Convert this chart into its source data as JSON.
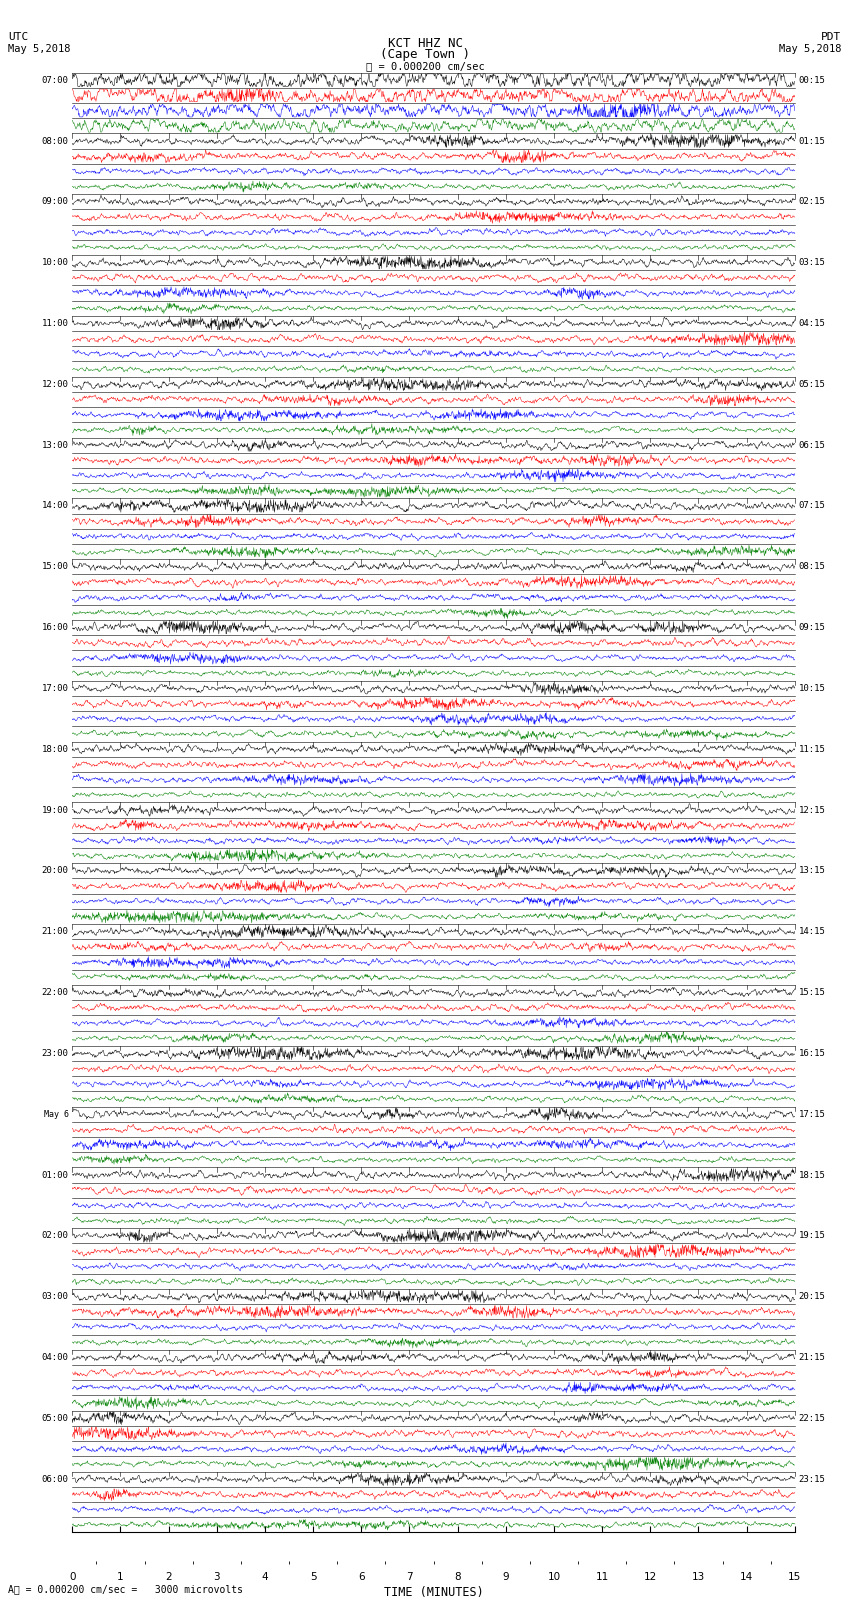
{
  "title_line1": "KCT HHZ NC",
  "title_line2": "(Cape Town )",
  "scale_text": "= 0.000200 cm/sec",
  "scale_text_bottom": "= 0.000200 cm/sec =   3000 microvolts",
  "utc_label": "UTC",
  "utc_date": "May 5,2018",
  "pdt_label": "PDT",
  "pdt_date": "May 5,2018",
  "xlabel": "TIME (MINUTES)",
  "xticks": [
    0,
    1,
    2,
    3,
    4,
    5,
    6,
    7,
    8,
    9,
    10,
    11,
    12,
    13,
    14,
    15
  ],
  "time_minutes": 15,
  "num_rows": 24,
  "channels_per_row": 4,
  "channel_colors": [
    "black",
    "red",
    "blue",
    "green"
  ],
  "left_times_utc": [
    "07:00",
    "08:00",
    "09:00",
    "10:00",
    "11:00",
    "12:00",
    "13:00",
    "14:00",
    "15:00",
    "16:00",
    "17:00",
    "18:00",
    "19:00",
    "20:00",
    "21:00",
    "22:00",
    "23:00",
    "May 6",
    "01:00",
    "02:00",
    "03:00",
    "04:00",
    "05:00",
    "06:00"
  ],
  "right_times_pdt": [
    "00:15",
    "01:15",
    "02:15",
    "03:15",
    "04:15",
    "05:15",
    "06:15",
    "07:15",
    "08:15",
    "09:15",
    "10:15",
    "11:15",
    "12:15",
    "13:15",
    "14:15",
    "15:15",
    "16:15",
    "17:15",
    "18:15",
    "19:15",
    "20:15",
    "21:15",
    "22:15",
    "23:15"
  ],
  "fig_width": 8.5,
  "fig_height": 16.13,
  "bg_color": "white",
  "seed": 42
}
